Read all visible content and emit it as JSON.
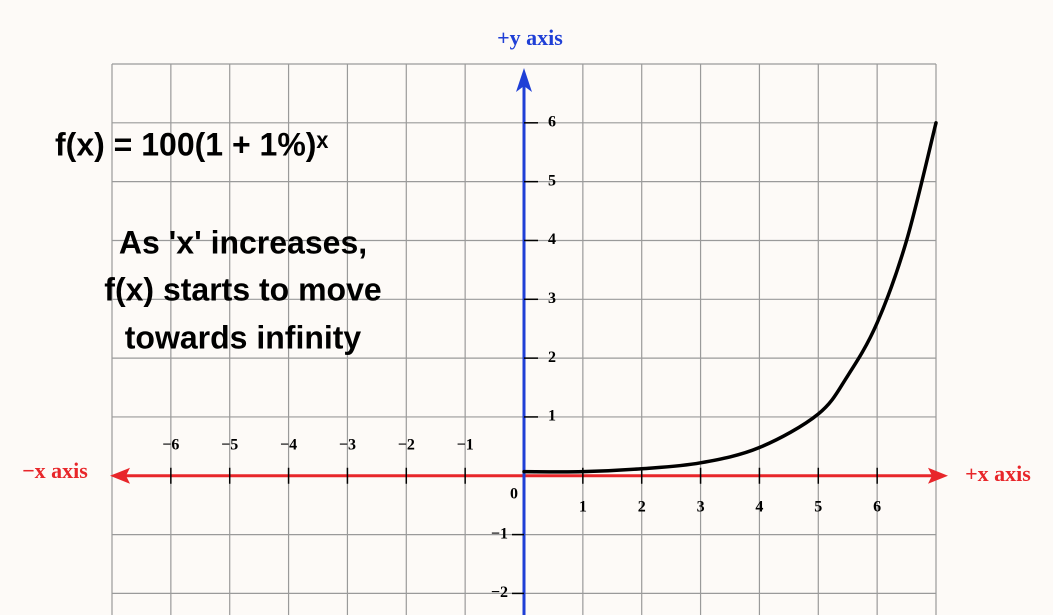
{
  "chart_data": {
    "type": "line",
    "x_label_positive": "+x axis",
    "x_label_negative": "−x axis",
    "y_label": "+y axis",
    "origin_label": "0",
    "annotations": [
      "f(x) = 100(1 + 1%)ˣ",
      "As 'x' increases,",
      "f(x) starts to move",
      "towards infinity"
    ],
    "x": [
      0,
      1,
      2,
      3,
      4,
      5,
      5.5,
      6,
      6.5,
      7
    ],
    "series": [
      {
        "color": "#000000",
        "values": [
          0.07,
          0.07,
          0.12,
          0.22,
          0.48,
          1.05,
          1.7,
          2.6,
          4,
          6
        ]
      }
    ],
    "xlim": [
      -7,
      7
    ],
    "ylim": [
      -2.35,
      7
    ],
    "xticks": [
      {
        "value": -6,
        "label": "−6"
      },
      {
        "value": -5,
        "label": "−5"
      },
      {
        "value": -4,
        "label": "−4"
      },
      {
        "value": -3,
        "label": "−3"
      },
      {
        "value": -2,
        "label": "−2"
      },
      {
        "value": -1,
        "label": "−1"
      },
      1,
      2,
      3,
      4,
      5,
      6
    ],
    "yticks": [
      {
        "value": -2,
        "label": "−2"
      },
      {
        "value": -1,
        "label": "−1"
      },
      1,
      2,
      3,
      4,
      5,
      6
    ],
    "grid": true,
    "x_axis_color": "#e8262a",
    "y_axis_color": "#1f3fd6"
  }
}
